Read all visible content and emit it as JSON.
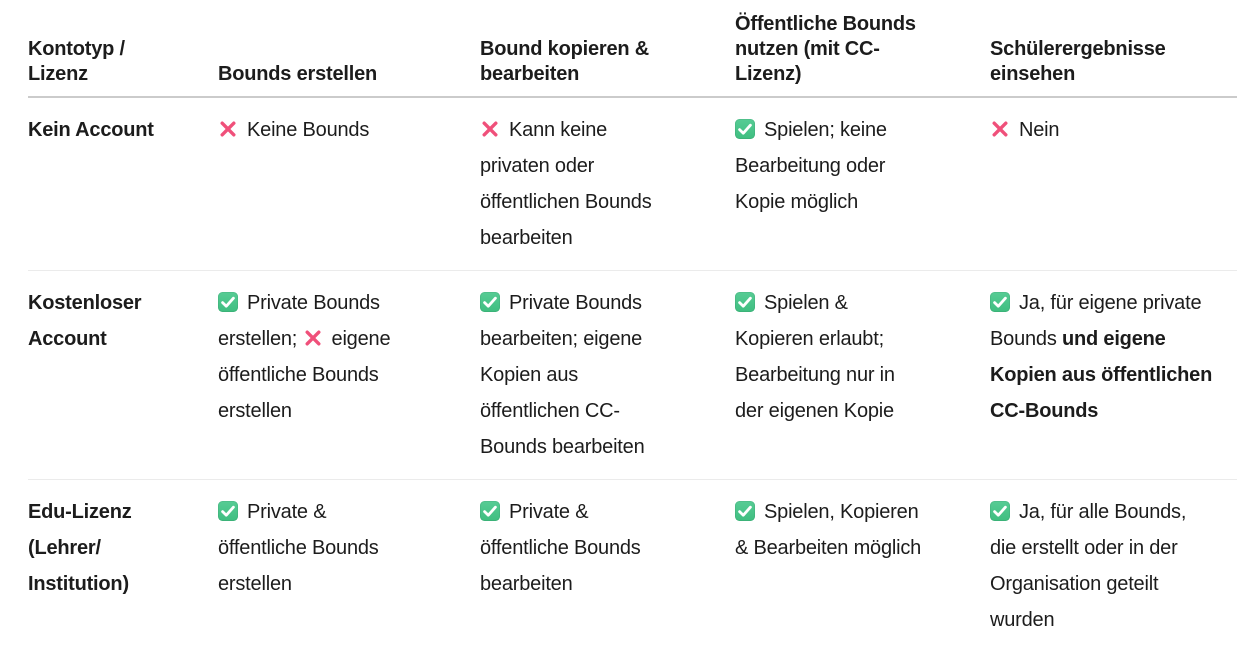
{
  "colors": {
    "text": "#1c1c1c",
    "header_border": "#cbcbcb",
    "row_border": "#ebebeb",
    "check_green_top": "#57cc95",
    "check_green_bottom": "#3fbe80",
    "cross_pink": "#f0507a"
  },
  "icons": {
    "check": "check-icon",
    "cross": "cross-icon"
  },
  "table": {
    "columns": [
      {
        "label": "Kontotyp / Lizenz"
      },
      {
        "label": "Bounds erstellen"
      },
      {
        "label": "Bound kopieren & bearbeiten"
      },
      {
        "label": "Öffentliche Bounds nutzen (mit CC-Lizenz)"
      },
      {
        "label": "Schülerergebnisse einsehen"
      }
    ],
    "rows": [
      {
        "label": "Kein Account",
        "cells": [
          [
            {
              "icon": "cross"
            },
            {
              "text": "Keine Bounds"
            }
          ],
          [
            {
              "icon": "cross"
            },
            {
              "text": "Kann keine privaten oder öffentlichen Bounds bearbeiten"
            }
          ],
          [
            {
              "icon": "check"
            },
            {
              "text": "Spielen; keine Bearbeitung oder Kopie möglich"
            }
          ],
          [
            {
              "icon": "cross"
            },
            {
              "text": "Nein"
            }
          ]
        ]
      },
      {
        "label": "Kostenloser Account",
        "cells": [
          [
            {
              "icon": "check"
            },
            {
              "text": "Private Bounds erstellen; "
            },
            {
              "icon": "cross"
            },
            {
              "text": "eigene öffentliche Bounds erstellen"
            }
          ],
          [
            {
              "icon": "check"
            },
            {
              "text": "Private Bounds bearbeiten; eigene Kopien aus öffentlichen CC-Bounds bearbeiten"
            }
          ],
          [
            {
              "icon": "check"
            },
            {
              "text": "Spielen & Kopieren erlaubt; Bearbeitung nur in der eigenen Kopie"
            }
          ],
          [
            {
              "icon": "check"
            },
            {
              "text": "Ja, für eigene private Bounds "
            },
            {
              "text": "und eigene Kopien aus öffentlichen CC-Bounds",
              "bold": true
            }
          ]
        ]
      },
      {
        "label": "Edu-Lizenz (Lehrer/ Institution)",
        "cells": [
          [
            {
              "icon": "check"
            },
            {
              "text": "Private & öffentliche Bounds erstellen"
            }
          ],
          [
            {
              "icon": "check"
            },
            {
              "text": "Private & öffentliche Bounds bearbeiten"
            }
          ],
          [
            {
              "icon": "check"
            },
            {
              "text": "Spielen, Kopieren & Bearbeiten möglich"
            }
          ],
          [
            {
              "icon": "check"
            },
            {
              "text": "Ja, für alle Bounds, die erstellt oder in der Organisation geteilt wurden"
            }
          ]
        ]
      }
    ]
  }
}
